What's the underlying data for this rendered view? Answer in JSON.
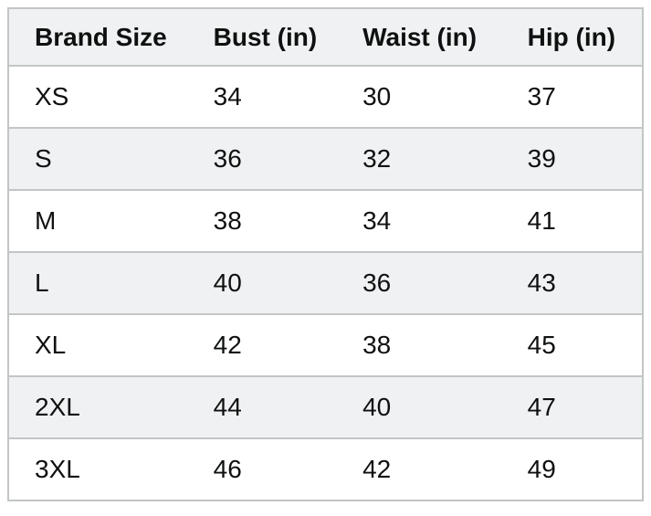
{
  "chart_data": {
    "type": "table",
    "title": "",
    "columns": [
      "Brand Size",
      "Bust (in)",
      "Waist (in)",
      "Hip (in)"
    ],
    "rows": [
      [
        "XS",
        "34",
        "30",
        "37"
      ],
      [
        "S",
        "36",
        "32",
        "39"
      ],
      [
        "M",
        "38",
        "34",
        "41"
      ],
      [
        "L",
        "40",
        "36",
        "43"
      ],
      [
        "XL",
        "42",
        "38",
        "45"
      ],
      [
        "2XL",
        "44",
        "40",
        "47"
      ],
      [
        "3XL",
        "46",
        "42",
        "49"
      ]
    ],
    "layout": {
      "header_background": "#f0f1f2",
      "stripe_background": "#f0f1f2",
      "row_background": "#ffffff",
      "border_color": "#c3c6c6",
      "text_color": "#0f1111",
      "striped_rows": [
        "S",
        "L",
        "2XL"
      ]
    }
  }
}
